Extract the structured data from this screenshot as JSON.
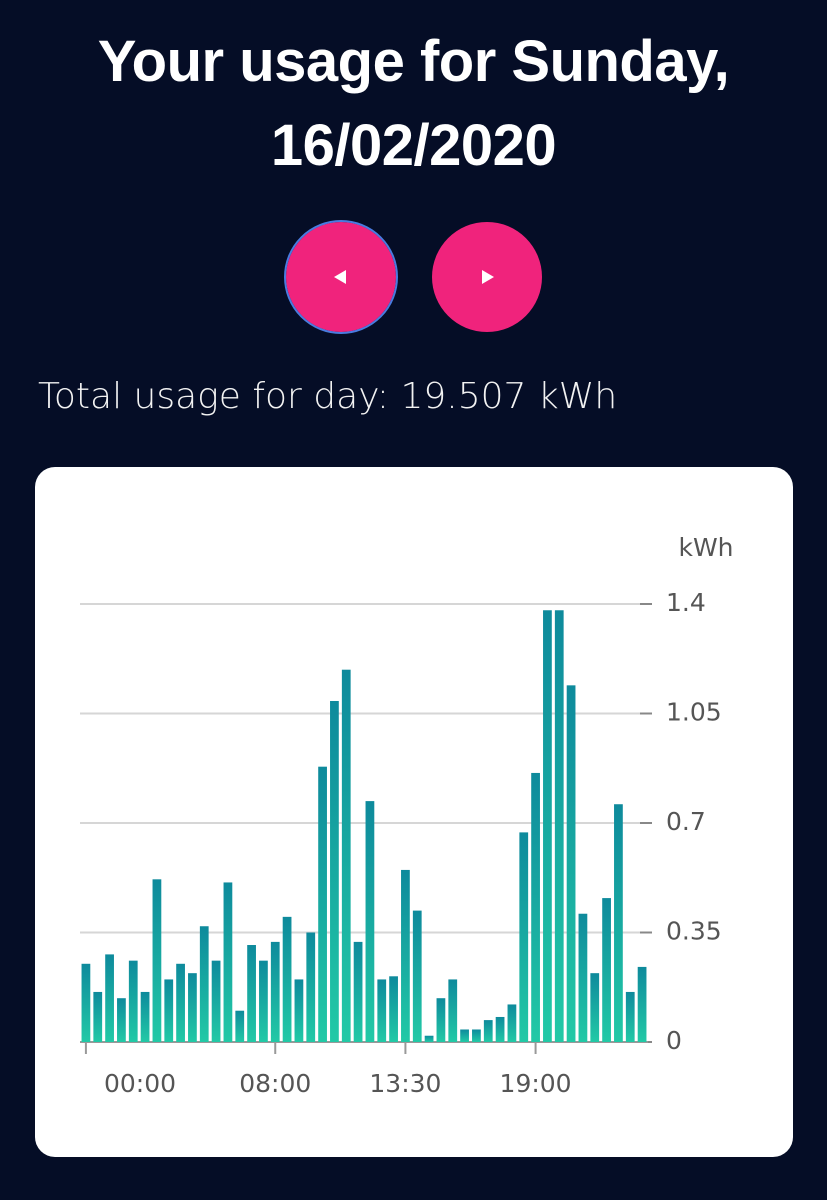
{
  "header": {
    "title": "Your usage for Sunday, 16/02/2020"
  },
  "summary": "Total usage for day: 19.507 kWh",
  "chart_data": {
    "type": "bar",
    "y_label": "kWh",
    "categories": [
      "00:00",
      null,
      null,
      null,
      null,
      null,
      null,
      null,
      null,
      null,
      null,
      null,
      null,
      null,
      null,
      null,
      "08:00",
      null,
      null,
      null,
      null,
      null,
      null,
      null,
      null,
      null,
      null,
      "13:30",
      null,
      null,
      null,
      null,
      null,
      null,
      null,
      null,
      null,
      null,
      "19:00",
      null,
      null,
      null,
      null,
      null,
      null,
      null,
      null,
      null
    ],
    "values": [
      0.25,
      0.16,
      0.28,
      0.14,
      0.26,
      0.16,
      0.52,
      0.2,
      0.25,
      0.22,
      0.37,
      0.26,
      0.51,
      0.1,
      0.31,
      0.26,
      0.32,
      0.4,
      0.2,
      0.35,
      0.88,
      1.09,
      1.19,
      0.32,
      0.77,
      0.2,
      0.21,
      0.55,
      0.42,
      0.02,
      0.14,
      0.2,
      0.04,
      0.04,
      0.07,
      0.08,
      0.12,
      0.67,
      0.86,
      1.38,
      1.38,
      1.14,
      0.41,
      0.22,
      0.46,
      0.76,
      0.16,
      0.24
    ],
    "color_top": "#0e8a9c",
    "color_bottom": "#22c9a6",
    "ylim": [
      0,
      1.4
    ],
    "yticks": [
      0,
      0.35,
      0.7,
      1.05,
      1.4
    ],
    "grid": true
  }
}
